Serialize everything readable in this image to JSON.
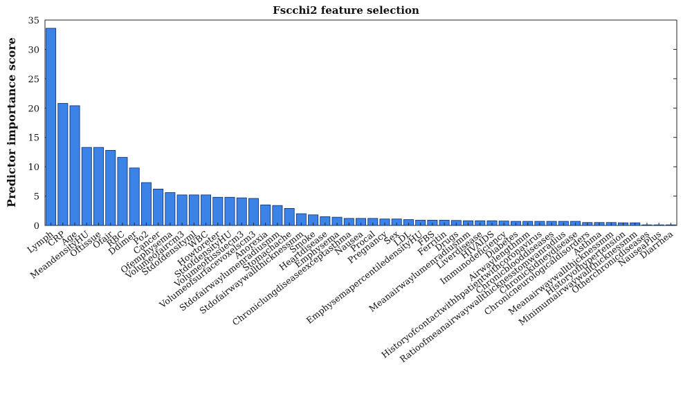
{
  "chart_data": {
    "type": "bar",
    "title": "Fscchi2 feature selection",
    "xlabel": "",
    "ylabel": "Predictor importance score",
    "ylim": [
      0,
      35
    ],
    "yticks": [
      "0",
      "5",
      "10",
      "15",
      "20",
      "25",
      "30",
      "35"
    ],
    "grid": false,
    "bar_color": "#3b83e6",
    "bar_edge_color": "#0d2a6b",
    "categories": [
      "Lymph",
      "CRP",
      "Age",
      "MeandensityHU",
      "Oftissue",
      "Ofair",
      "RBC",
      "Ddimer",
      "Po2",
      "Cancer",
      "Ofemphysema",
      "Volumeofaircm3",
      "Stdofdensityml",
      "WBC",
      "Howtoreter",
      "StdofdensityHU",
      "Volumeoftissuecm3",
      "Volumeofsurfacevoxelscm3",
      "Anorexia",
      "Stdofairwaylumenradiusmm",
      "Stomachache",
      "Stdofairwaywallthicknessmm",
      "Smoke",
      "Heartdisease",
      "Emphysema",
      "Chroniclungdiseaseexceptasthma",
      "Nausea",
      "Procal",
      "Pregnancy",
      "Sex",
      "LDL",
      "EmphysemapercentiledensityHU",
      "FBS",
      "Ferritin",
      "Drugs",
      "Meanairwaylumenradiusmm",
      "Liverdisease",
      "HIVAIDS",
      "Immunodeficiency",
      "Diabetes",
      "Airwaylengthmm",
      "Historyofcontactwithhpatientwithcoronavirus",
      "Chronicblooddiseases",
      "Ratioofmeanairwaywallthicknesstomwanradius",
      "Chronickidneydisease",
      "Chronicneurologicaldisorders",
      "Asthma",
      "Meanairwaywallthicknessmm",
      "Historyofhypertension",
      "Minimumairwaywallthicknessmm",
      "Otherchronicdiseases",
      "NauseaPlus",
      "Diarrhea"
    ],
    "values": [
      33.6,
      20.8,
      20.4,
      13.3,
      13.3,
      12.8,
      11.6,
      9.8,
      7.3,
      6.2,
      5.6,
      5.2,
      5.2,
      5.2,
      4.8,
      4.8,
      4.7,
      4.6,
      3.5,
      3.4,
      2.9,
      2.0,
      1.8,
      1.5,
      1.4,
      1.2,
      1.2,
      1.2,
      1.1,
      1.1,
      1.0,
      0.9,
      0.9,
      0.9,
      0.85,
      0.8,
      0.8,
      0.8,
      0.75,
      0.7,
      0.7,
      0.7,
      0.7,
      0.7,
      0.7,
      0.5,
      0.5,
      0.5,
      0.45,
      0.45,
      0.1,
      0.1,
      0.1
    ]
  }
}
